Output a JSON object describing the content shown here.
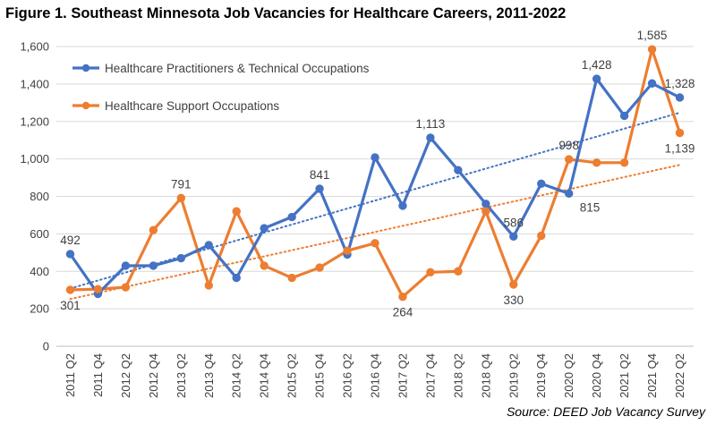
{
  "title": "Figure 1. Southeast Minnesota Job Vacancies for Healthcare Careers, 2011-2022",
  "source": "Source: DEED Job Vacancy Survey",
  "chart_data": {
    "type": "line",
    "title": "Figure 1. Southeast Minnesota Job Vacancies for Healthcare Careers, 2011-2022",
    "xlabel": "",
    "ylabel": "",
    "ylim": [
      0,
      1600
    ],
    "yticks": [
      0,
      200,
      400,
      600,
      800,
      1000,
      1200,
      1400,
      1600
    ],
    "ytick_labels": [
      "0",
      "200",
      "400",
      "600",
      "800",
      "1,000",
      "1,200",
      "1,400",
      "1,600"
    ],
    "grid": "horizontal",
    "legend": "top-left",
    "categories": [
      "2011 Q2",
      "2011 Q4",
      "2012 Q2",
      "2012 Q4",
      "2013 Q2",
      "2013 Q4",
      "2014 Q2",
      "2014 Q4",
      "2015 Q2",
      "2015 Q4",
      "2016 Q2",
      "2016 Q4",
      "2017 Q2",
      "2017 Q4",
      "2018 Q2",
      "2018 Q4",
      "2019 Q2",
      "2019 Q4",
      "2020 Q2",
      "2020 Q4",
      "2021 Q2",
      "2021 Q4",
      "2022 Q2"
    ],
    "series": [
      {
        "name": "Healthcare Practitioners & Technical Occupations",
        "color": "#4472C4",
        "values": [
          492,
          280,
          430,
          430,
          470,
          540,
          365,
          630,
          690,
          841,
          490,
          1008,
          750,
          1113,
          940,
          760,
          586,
          868,
          815,
          1428,
          1230,
          1403,
          1328
        ],
        "labels": [
          {
            "index": 0,
            "text": "492",
            "pos": "above"
          },
          {
            "index": 9,
            "text": "841",
            "pos": "above"
          },
          {
            "index": 13,
            "text": "1,113",
            "pos": "above"
          },
          {
            "index": 16,
            "text": "586",
            "pos": "above"
          },
          {
            "index": 18,
            "text": "815",
            "pos": "below-right"
          },
          {
            "index": 19,
            "text": "1,428",
            "pos": "above"
          },
          {
            "index": 22,
            "text": "1,328",
            "pos": "above"
          }
        ],
        "trendline": true
      },
      {
        "name": "Healthcare Support Occupations",
        "color": "#ED7D31",
        "values": [
          301,
          305,
          315,
          620,
          791,
          325,
          720,
          430,
          365,
          420,
          510,
          550,
          264,
          395,
          400,
          720,
          330,
          590,
          998,
          980,
          980,
          1585,
          1139
        ],
        "labels": [
          {
            "index": 0,
            "text": "301",
            "pos": "below"
          },
          {
            "index": 4,
            "text": "791",
            "pos": "above"
          },
          {
            "index": 12,
            "text": "264",
            "pos": "below"
          },
          {
            "index": 16,
            "text": "330",
            "pos": "below"
          },
          {
            "index": 18,
            "text": "998",
            "pos": "above"
          },
          {
            "index": 21,
            "text": "1,585",
            "pos": "above"
          },
          {
            "index": 22,
            "text": "1,139",
            "pos": "below"
          }
        ],
        "trendline": true
      }
    ]
  }
}
